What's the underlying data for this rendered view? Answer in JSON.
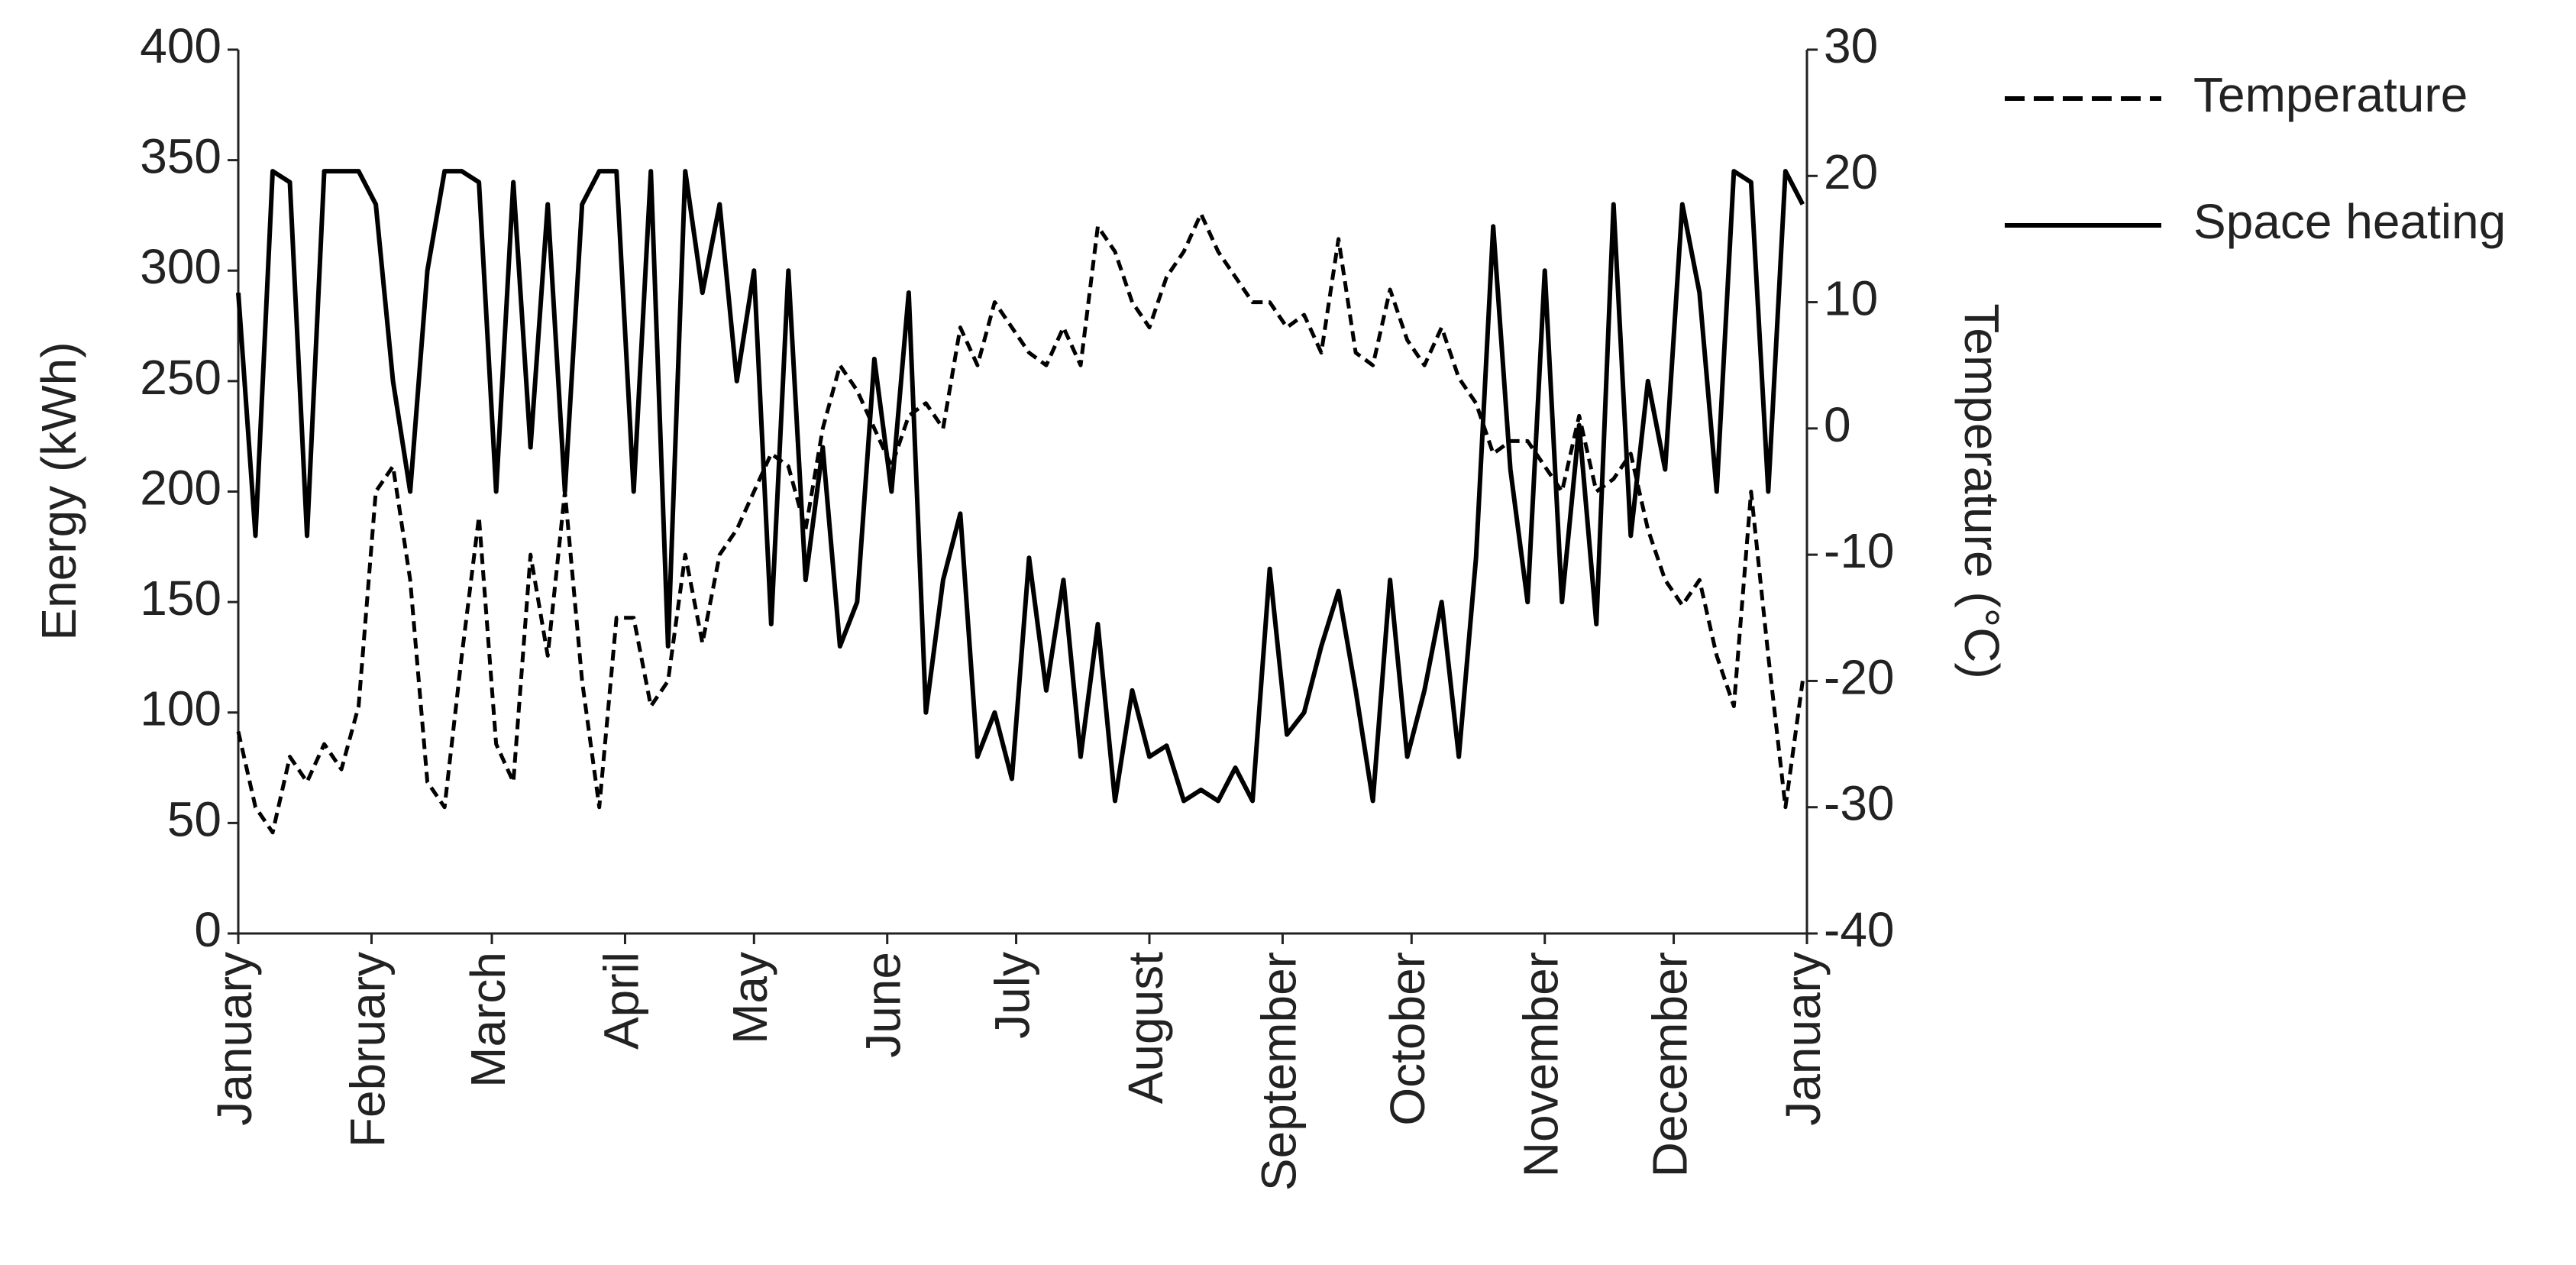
{
  "chart_data": {
    "type": "line",
    "y_label": "Energy (kWh)",
    "y2_label": "Temperature (°C)",
    "xlim": [
      0,
      365
    ],
    "xticks": [
      {
        "value": 0,
        "label": "January"
      },
      {
        "value": 31,
        "label": "February"
      },
      {
        "value": 59,
        "label": "March"
      },
      {
        "value": 90,
        "label": "April"
      },
      {
        "value": 120,
        "label": "May"
      },
      {
        "value": 151,
        "label": "June"
      },
      {
        "value": 181,
        "label": "July"
      },
      {
        "value": 212,
        "label": "August"
      },
      {
        "value": 243,
        "label": "September"
      },
      {
        "value": 273,
        "label": "October"
      },
      {
        "value": 304,
        "label": "November"
      },
      {
        "value": 334,
        "label": "December"
      },
      {
        "value": 365,
        "label": "January"
      }
    ],
    "ylim": [
      0,
      400
    ],
    "yticks": [
      0,
      50,
      100,
      150,
      200,
      250,
      300,
      350,
      400
    ],
    "y2lim": [
      -40,
      30
    ],
    "y2ticks": [
      -40,
      -30,
      -20,
      -10,
      0,
      10,
      20,
      30
    ],
    "legend": "right",
    "x": [
      0,
      4,
      8,
      12,
      16,
      20,
      24,
      28,
      32,
      36,
      40,
      44,
      48,
      52,
      56,
      60,
      64,
      68,
      72,
      76,
      80,
      84,
      88,
      92,
      96,
      100,
      104,
      108,
      112,
      116,
      120,
      124,
      128,
      132,
      136,
      140,
      144,
      148,
      152,
      156,
      160,
      164,
      168,
      172,
      176,
      180,
      184,
      188,
      192,
      196,
      200,
      204,
      208,
      212,
      216,
      220,
      224,
      228,
      232,
      236,
      240,
      244,
      248,
      252,
      256,
      260,
      264,
      268,
      272,
      276,
      280,
      284,
      288,
      292,
      296,
      300,
      304,
      308,
      312,
      316,
      320,
      324,
      328,
      332,
      336,
      340,
      344,
      348,
      352,
      356,
      360,
      364
    ],
    "series": [
      {
        "name": "Temperature",
        "color": "#000000",
        "dash": true,
        "axis": "y2",
        "values": [
          -24,
          -30,
          -32,
          -26,
          -28,
          -25,
          -27,
          -22,
          -5,
          -3,
          -12,
          -28,
          -30,
          -18,
          -7,
          -25,
          -28,
          -10,
          -18,
          -5,
          -20,
          -30,
          -15,
          -15,
          -22,
          -20,
          -10,
          -17,
          -10,
          -8,
          -5,
          -2,
          -3,
          -8,
          0,
          5,
          3,
          0,
          -3,
          1,
          2,
          0,
          8,
          5,
          10,
          8,
          6,
          5,
          8,
          5,
          16,
          14,
          10,
          8,
          12,
          14,
          17,
          14,
          12,
          10,
          10,
          8,
          9,
          6,
          15,
          6,
          5,
          11,
          7,
          5,
          8,
          4,
          2,
          -2,
          -1,
          -1,
          -3,
          -5,
          1,
          -5,
          -4,
          -2,
          -8,
          -12,
          -14,
          -12,
          -18,
          -22,
          -5,
          -18,
          -30,
          -20
        ]
      },
      {
        "name": "Space heating",
        "color": "#000000",
        "dash": false,
        "axis": "y",
        "values": [
          290,
          180,
          345,
          340,
          180,
          345,
          345,
          345,
          330,
          250,
          200,
          300,
          345,
          345,
          340,
          200,
          340,
          220,
          330,
          200,
          330,
          345,
          345,
          200,
          345,
          130,
          345,
          290,
          330,
          250,
          300,
          140,
          300,
          160,
          220,
          130,
          150,
          260,
          200,
          290,
          100,
          160,
          190,
          80,
          100,
          70,
          170,
          110,
          160,
          80,
          140,
          60,
          110,
          80,
          85,
          60,
          65,
          60,
          75,
          60,
          165,
          90,
          100,
          130,
          155,
          110,
          60,
          160,
          80,
          110,
          150,
          80,
          170,
          320,
          210,
          150,
          300,
          150,
          230,
          140,
          330,
          180,
          250,
          210,
          330,
          290,
          200,
          345,
          340,
          200,
          345,
          330
        ]
      }
    ]
  }
}
